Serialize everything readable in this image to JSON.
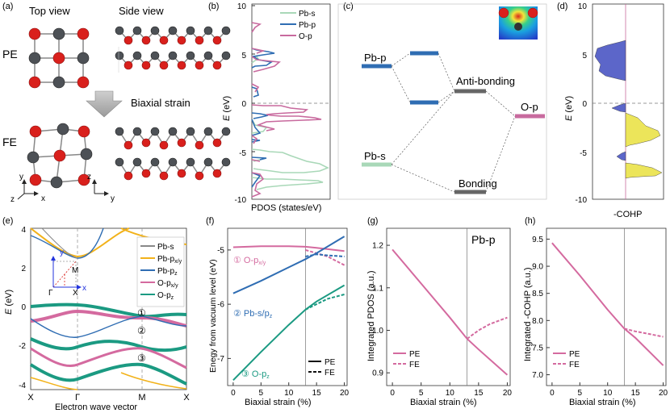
{
  "colors": {
    "pb": "#4d5156",
    "o": "#d9201c",
    "pbs": "#a9d8b8",
    "pbp": "#2f6db3",
    "op": "#c86a9e",
    "gold": "#f2b21a",
    "teal": "#1b9a82",
    "pink": "#d46a9f",
    "blueFill": "#5c66c9",
    "yellowFill": "#ece55a",
    "gray": "#666666"
  },
  "panel_a": {
    "label": "(a)",
    "top_view": "Top view",
    "side_view": "Side view",
    "pe": "PE",
    "fe": "FE",
    "arrow_label": "Biaxial strain",
    "axis_z": "z",
    "axis_x": "x",
    "axis_y": "y",
    "axis_y2": "y"
  },
  "panel_b": {
    "label": "(b)",
    "legend": [
      "Pb-s",
      "Pb-p",
      "O-p"
    ],
    "ylabel_main": "E",
    "ylabel_unit": " (eV)",
    "xlabel": "PDOS (states/eV)",
    "yticks": [
      "10",
      "5",
      "0",
      "-5",
      "-10"
    ]
  },
  "panel_c": {
    "label": "(c)",
    "pbp": "Pb-p",
    "pbs": "Pb-s",
    "antibonding": "Anti-bonding",
    "bonding": "Bonding",
    "op": "O-p"
  },
  "panel_d": {
    "label": "(d)",
    "ylabel_main": "E",
    "ylabel_unit": " (eV)",
    "xlabel": "-COHP",
    "yticks": [
      "10",
      "5",
      "0",
      "-5",
      "-10"
    ]
  },
  "panel_e": {
    "label": "(e)",
    "ylabel_main": "E",
    "ylabel_unit": " (eV)",
    "xlabel": "Electron wave vector",
    "yticks": [
      "4",
      "2",
      "0",
      "-2",
      "-4"
    ],
    "kpoints": [
      "X",
      "Γ",
      "M",
      "X"
    ],
    "legend": [
      "Pb-s",
      "Pb-p",
      "Pb-p",
      "O-p",
      "O-p"
    ],
    "legend_sub": [
      "",
      "x/y",
      "z",
      "x/y",
      "z"
    ],
    "inset": {
      "M": "M",
      "G": "Γ",
      "X": "X",
      "x": "x",
      "y": "y"
    },
    "markers": [
      "①",
      "②",
      "③"
    ]
  },
  "panel_f": {
    "label": "(f)",
    "ylabel": "Enegy from vacuum level (eV)",
    "xlabel": "Biaxial strain (%)",
    "yticks": [
      "-5",
      "-6",
      "-7"
    ],
    "xticks": [
      "0",
      "5",
      "10",
      "15",
      "20"
    ],
    "label1": "① O-p",
    "label1_sub": "x/y",
    "label2": "② Pb-s/p",
    "label2_sub": "z",
    "label3": "③ O-p",
    "label3_sub": "z",
    "legend": [
      "PE",
      "FE"
    ]
  },
  "panel_g": {
    "label": "(g)",
    "title": "Pb-p",
    "ylabel": "Integrated PDOS (a.u.)",
    "xlabel": "Biaxial strain (%)",
    "yticks": [
      "1.2",
      "1.1",
      "1.0",
      "0.9"
    ],
    "xticks": [
      "0",
      "5",
      "10",
      "15",
      "20"
    ],
    "legend": [
      "PE",
      "FE"
    ]
  },
  "panel_h": {
    "label": "(h)",
    "ylabel": "Integrated -COHP (a.u.)",
    "xlabel": "Biaxial strain (%)",
    "yticks": [
      "9.5",
      "9.0",
      "8.5",
      "8.0",
      "7.5",
      "7.0"
    ],
    "xticks": [
      "0",
      "5",
      "10",
      "15",
      "20"
    ],
    "legend": [
      "PE",
      "FE"
    ]
  },
  "chart_data": [
    {
      "type": "line",
      "panel": "f",
      "xlabel": "Biaxial strain (%)",
      "ylabel": "Enegy from vacuum level (eV)",
      "xlim": [
        -1,
        20.5
      ],
      "ylim": [
        -7.5,
        -4.6
      ],
      "series": [
        {
          "name": "① O-px/y PE",
          "x": [
            0,
            5,
            10,
            13,
            15,
            20
          ],
          "values": [
            -4.95,
            -4.93,
            -4.93,
            -4.94,
            -4.96,
            -5.02
          ]
        },
        {
          "name": "① O-px/y FE",
          "x": [
            13,
            15,
            17,
            20
          ],
          "values": [
            -5.0,
            -5.06,
            -5.12,
            -5.28
          ]
        },
        {
          "name": "② Pb-s/pz PE",
          "x": [
            0,
            5,
            10,
            13,
            15,
            20
          ],
          "values": [
            -5.8,
            -5.57,
            -5.32,
            -5.17,
            -5.06,
            -4.75
          ]
        },
        {
          "name": "② Pb-s/pz FE",
          "x": [
            13,
            15,
            17,
            20
          ],
          "values": [
            -5.12,
            -5.08,
            -5.1,
            -5.12
          ]
        },
        {
          "name": "③ O-pz PE",
          "x": [
            0,
            5,
            10,
            13,
            15,
            20
          ],
          "values": [
            -7.4,
            -6.88,
            -6.38,
            -6.1,
            -5.95,
            -5.65
          ]
        },
        {
          "name": "③ O-pz FE",
          "x": [
            13,
            15,
            17,
            20
          ],
          "values": [
            -6.1,
            -6.0,
            -5.9,
            -5.82
          ]
        }
      ]
    },
    {
      "type": "line",
      "panel": "g",
      "title": "Pb-p",
      "xlabel": "Biaxial strain (%)",
      "ylabel": "Integrated PDOS (a.u.)",
      "xlim": [
        -1,
        20.5
      ],
      "ylim": [
        0.87,
        1.24
      ],
      "series": [
        {
          "name": "PE",
          "x": [
            0,
            5,
            10,
            13,
            15,
            20
          ],
          "values": [
            1.19,
            1.11,
            1.03,
            0.98,
            0.955,
            0.895
          ]
        },
        {
          "name": "FE",
          "x": [
            13,
            15,
            17,
            20
          ],
          "values": [
            0.98,
            1.0,
            1.015,
            1.03
          ]
        }
      ]
    },
    {
      "type": "line",
      "panel": "h",
      "xlabel": "Biaxial strain (%)",
      "ylabel": "Integrated -COHP (a.u.)",
      "xlim": [
        -1,
        20.5
      ],
      "ylim": [
        6.8,
        9.7
      ],
      "series": [
        {
          "name": "PE",
          "x": [
            0,
            5,
            10,
            13,
            15,
            20
          ],
          "values": [
            9.43,
            8.83,
            8.2,
            7.85,
            7.68,
            7.17
          ]
        },
        {
          "name": "FE",
          "x": [
            13,
            15,
            17,
            20
          ],
          "values": [
            7.85,
            7.8,
            7.76,
            7.7
          ]
        }
      ]
    }
  ]
}
